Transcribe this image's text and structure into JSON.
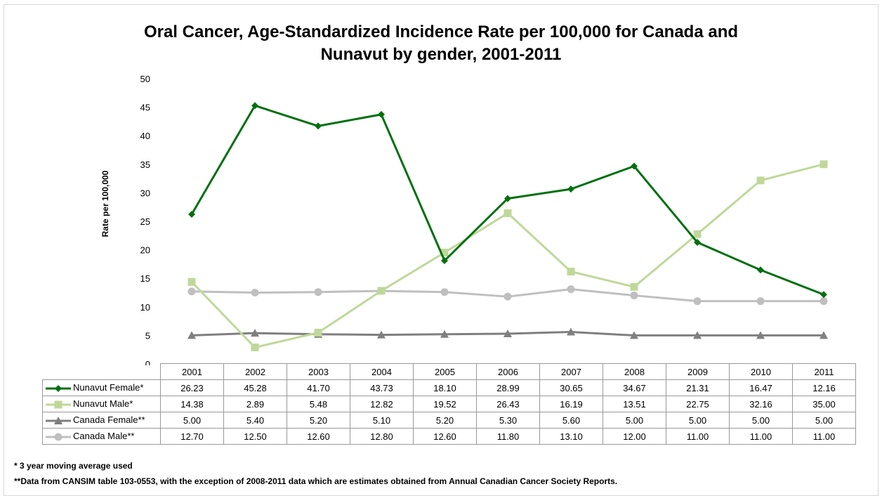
{
  "chart_data": {
    "type": "line",
    "title_lines": [
      "Oral Cancer, Age-Standardized Incidence Rate per 100,000 for Canada and",
      "Nunavut by gender, 2001-2011"
    ],
    "ylabel": "Rate per 100,000",
    "ylim": [
      0,
      50
    ],
    "yticks": [
      "0",
      "5",
      "10",
      "15",
      "20",
      "25",
      "30",
      "35",
      "40",
      "45",
      "50"
    ],
    "grid": false,
    "legend_placement": "data table",
    "categories": [
      "2001",
      "2002",
      "2003",
      "2004",
      "2005",
      "2006",
      "2007",
      "2008",
      "2009",
      "2010",
      "2011"
    ],
    "series": [
      {
        "name": "Nunavut Female*",
        "color": "#00700f",
        "marker": "diamond",
        "values": [
          26.23,
          45.28,
          41.7,
          43.73,
          18.1,
          28.99,
          30.65,
          34.67,
          21.31,
          16.47,
          12.16
        ],
        "labels": [
          "26.23",
          "45.28",
          "41.70",
          "43.73",
          "18.10",
          "28.99",
          "30.65",
          "34.67",
          "21.31",
          "16.47",
          "12.16"
        ]
      },
      {
        "name": "Nunavut Male*",
        "color": "#bfd89a",
        "marker": "square",
        "values": [
          14.38,
          2.89,
          5.48,
          12.82,
          19.52,
          26.43,
          16.19,
          13.51,
          22.75,
          32.16,
          35.0
        ],
        "labels": [
          "14.38",
          "2.89",
          "5.48",
          "12.82",
          "19.52",
          "26.43",
          "16.19",
          "13.51",
          "22.75",
          "32.16",
          "35.00"
        ]
      },
      {
        "name": "Canada Female**",
        "color": "#7f7f7f",
        "marker": "triangle",
        "values": [
          5.0,
          5.4,
          5.2,
          5.1,
          5.2,
          5.3,
          5.6,
          5.0,
          5.0,
          5.0,
          5.0
        ],
        "labels": [
          "5.00",
          "5.40",
          "5.20",
          "5.10",
          "5.20",
          "5.30",
          "5.60",
          "5.00",
          "5.00",
          "5.00",
          "5.00"
        ]
      },
      {
        "name": "Canada Male**",
        "color": "#bfbfbf",
        "marker": "circle",
        "values": [
          12.7,
          12.5,
          12.6,
          12.8,
          12.6,
          11.8,
          13.1,
          12.0,
          11.0,
          11.0,
          11.0
        ],
        "labels": [
          "12.70",
          "12.50",
          "12.60",
          "12.80",
          "12.60",
          "11.80",
          "13.10",
          "12.00",
          "11.00",
          "11.00",
          "11.00"
        ]
      }
    ]
  },
  "footnotes": {
    "note1": "* 3 year moving average used",
    "note2": "**Data from CANSIM table 103-0553, with the exception of 2008-2011 data which are estimates obtained from Annual Canadian Cancer Society Reports."
  }
}
